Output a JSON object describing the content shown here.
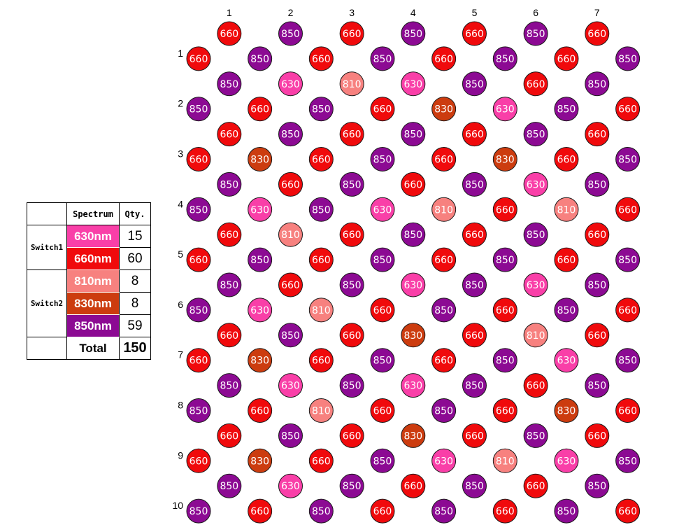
{
  "legend": {
    "header_spectrum": "Spectrum",
    "header_qty": "Qty.",
    "groups": [
      "Switch1",
      "Switch2"
    ],
    "items": [
      {
        "label": "630nm",
        "qty": "15",
        "color": "#f93fa8"
      },
      {
        "label": "660nm",
        "qty": "60",
        "color": "#f00a0c"
      },
      {
        "label": "810nm",
        "qty": "8",
        "color": "#f7817f"
      },
      {
        "label": "830nm",
        "qty": "8",
        "color": "#cc3c0f"
      },
      {
        "label": "850nm",
        "qty": "59",
        "color": "#8c0a93"
      }
    ],
    "total_label": "Total",
    "total_value": "150"
  },
  "board": {
    "column_labels": [
      "1",
      "2",
      "3",
      "4",
      "5",
      "6",
      "7"
    ],
    "row_labels": [
      "1",
      "2",
      "3",
      "4",
      "5",
      "6",
      "7",
      "8",
      "9",
      "10"
    ],
    "colors": {
      "630": "#f93fa8",
      "660": "#f00a0c",
      "810": "#f7817f",
      "830": "#cc3c0f",
      "850": "#8c0a93"
    },
    "rows": [
      [
        "",
        "660",
        "",
        "850",
        "",
        "660",
        "",
        "850",
        "",
        "660",
        "",
        "850",
        "",
        "660",
        ""
      ],
      [
        "660",
        "",
        "850",
        "",
        "660",
        "",
        "850",
        "",
        "660",
        "",
        "850",
        "",
        "660",
        "",
        "850"
      ],
      [
        "",
        "850",
        "",
        "630",
        "",
        "810",
        "",
        "630",
        "",
        "850",
        "",
        "660",
        "",
        "850",
        ""
      ],
      [
        "850",
        "",
        "660",
        "",
        "850",
        "",
        "660",
        "",
        "830",
        "",
        "630",
        "",
        "850",
        "",
        "660"
      ],
      [
        "",
        "660",
        "",
        "850",
        "",
        "660",
        "",
        "850",
        "",
        "660",
        "",
        "850",
        "",
        "660",
        ""
      ],
      [
        "660",
        "",
        "830",
        "",
        "660",
        "",
        "850",
        "",
        "660",
        "",
        "830",
        "",
        "660",
        "",
        "850"
      ],
      [
        "",
        "850",
        "",
        "660",
        "",
        "850",
        "",
        "660",
        "",
        "850",
        "",
        "630",
        "",
        "850",
        ""
      ],
      [
        "850",
        "",
        "630",
        "",
        "850",
        "",
        "630",
        "",
        "810",
        "",
        "660",
        "",
        "810",
        "",
        "660"
      ],
      [
        "",
        "660",
        "",
        "810",
        "",
        "660",
        "",
        "850",
        "",
        "660",
        "",
        "850",
        "",
        "660",
        ""
      ],
      [
        "660",
        "",
        "850",
        "",
        "660",
        "",
        "850",
        "",
        "660",
        "",
        "850",
        "",
        "660",
        "",
        "850"
      ],
      [
        "",
        "850",
        "",
        "660",
        "",
        "850",
        "",
        "630",
        "",
        "850",
        "",
        "630",
        "",
        "850",
        ""
      ],
      [
        "850",
        "",
        "630",
        "",
        "810",
        "",
        "660",
        "",
        "850",
        "",
        "660",
        "",
        "850",
        "",
        "660"
      ],
      [
        "",
        "660",
        "",
        "850",
        "",
        "660",
        "",
        "830",
        "",
        "660",
        "",
        "810",
        "",
        "660",
        ""
      ],
      [
        "660",
        "",
        "830",
        "",
        "660",
        "",
        "850",
        "",
        "660",
        "",
        "850",
        "",
        "630",
        "",
        "850"
      ],
      [
        "",
        "850",
        "",
        "630",
        "",
        "850",
        "",
        "630",
        "",
        "850",
        "",
        "660",
        "",
        "850",
        ""
      ],
      [
        "850",
        "",
        "660",
        "",
        "810",
        "",
        "660",
        "",
        "850",
        "",
        "660",
        "",
        "830",
        "",
        "660"
      ],
      [
        "",
        "660",
        "",
        "850",
        "",
        "660",
        "",
        "830",
        "",
        "660",
        "",
        "850",
        "",
        "660",
        ""
      ],
      [
        "660",
        "",
        "830",
        "",
        "660",
        "",
        "850",
        "",
        "630",
        "",
        "810",
        "",
        "630",
        "",
        "850"
      ],
      [
        "",
        "850",
        "",
        "630",
        "",
        "850",
        "",
        "660",
        "",
        "850",
        "",
        "660",
        "",
        "850",
        ""
      ],
      [
        "850",
        "",
        "660",
        "",
        "850",
        "",
        "660",
        "",
        "850",
        "",
        "660",
        "",
        "850",
        "",
        "660"
      ]
    ]
  }
}
